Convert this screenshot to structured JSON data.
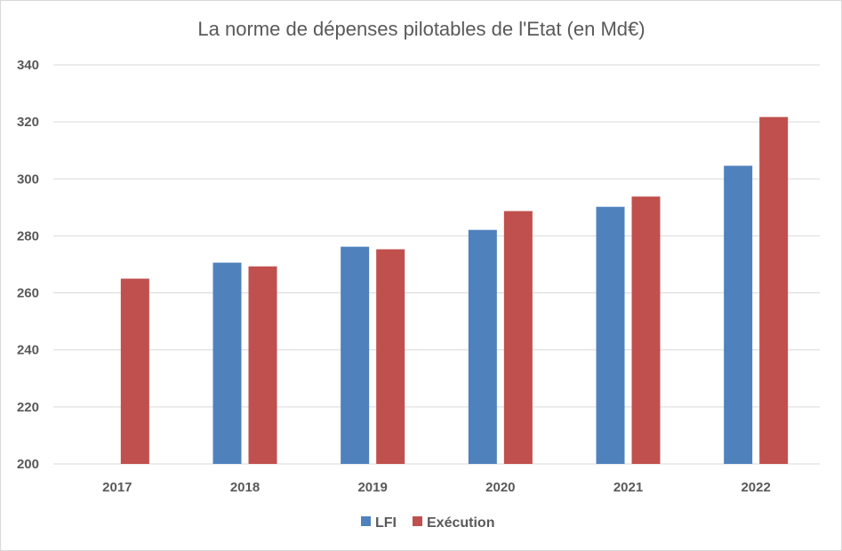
{
  "chart_data": {
    "type": "bar",
    "title": "La norme de dépenses pilotables de l'Etat (en Md€)",
    "categories": [
      "2017",
      "2018",
      "2019",
      "2020",
      "2021",
      "2022"
    ],
    "series": [
      {
        "name": "LFI",
        "color": "#4f81bd",
        "values": [
          null,
          270.6,
          276.2,
          282.1,
          290.2,
          304.6
        ]
      },
      {
        "name": "Exécution",
        "color": "#c0504d",
        "values": [
          265.0,
          269.3,
          275.3,
          288.7,
          293.8,
          321.7
        ]
      }
    ],
    "ylim": [
      200,
      340
    ],
    "yticks": [
      200,
      220,
      240,
      260,
      280,
      300,
      320,
      340
    ],
    "xlabel": "",
    "ylabel": "",
    "grid": true,
    "legend": "bottom"
  }
}
